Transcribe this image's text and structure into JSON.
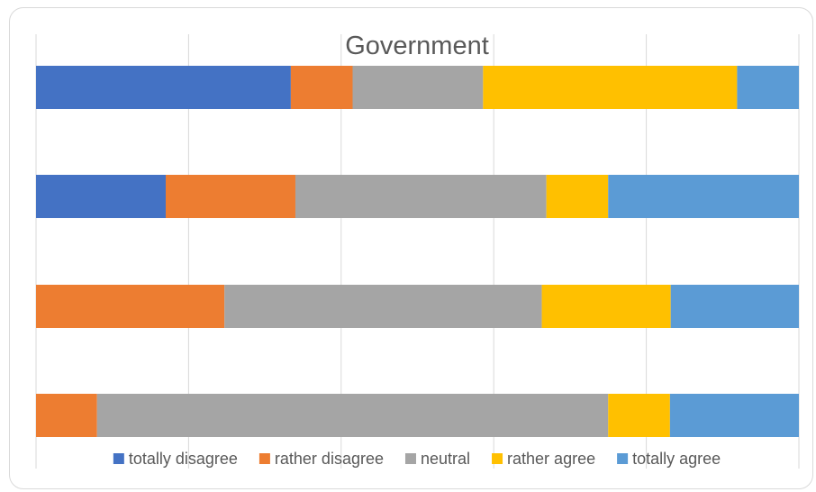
{
  "chart_data": {
    "type": "bar",
    "orientation": "horizontal",
    "stacked": true,
    "normalized": true,
    "title": "Government",
    "categories": [
      "",
      "",
      "",
      ""
    ],
    "xlim": [
      0,
      100
    ],
    "grid": true,
    "legend_position": "bottom",
    "series": [
      {
        "name": "totally disagree",
        "color": "#4472C4",
        "values": [
          33.4,
          17.0,
          0.0,
          0.0
        ]
      },
      {
        "name": "rather disagree",
        "color": "#ED7D31",
        "values": [
          8.1,
          17.0,
          24.7,
          8.0
        ]
      },
      {
        "name": "neutral",
        "color": "#A5A5A5",
        "values": [
          17.1,
          32.9,
          41.6,
          67.0
        ]
      },
      {
        "name": "rather agree",
        "color": "#FFC000",
        "values": [
          33.3,
          8.1,
          16.9,
          8.1
        ]
      },
      {
        "name": "totally agree",
        "color": "#5B9BD5",
        "values": [
          8.1,
          25.0,
          16.8,
          16.9
        ]
      }
    ]
  }
}
